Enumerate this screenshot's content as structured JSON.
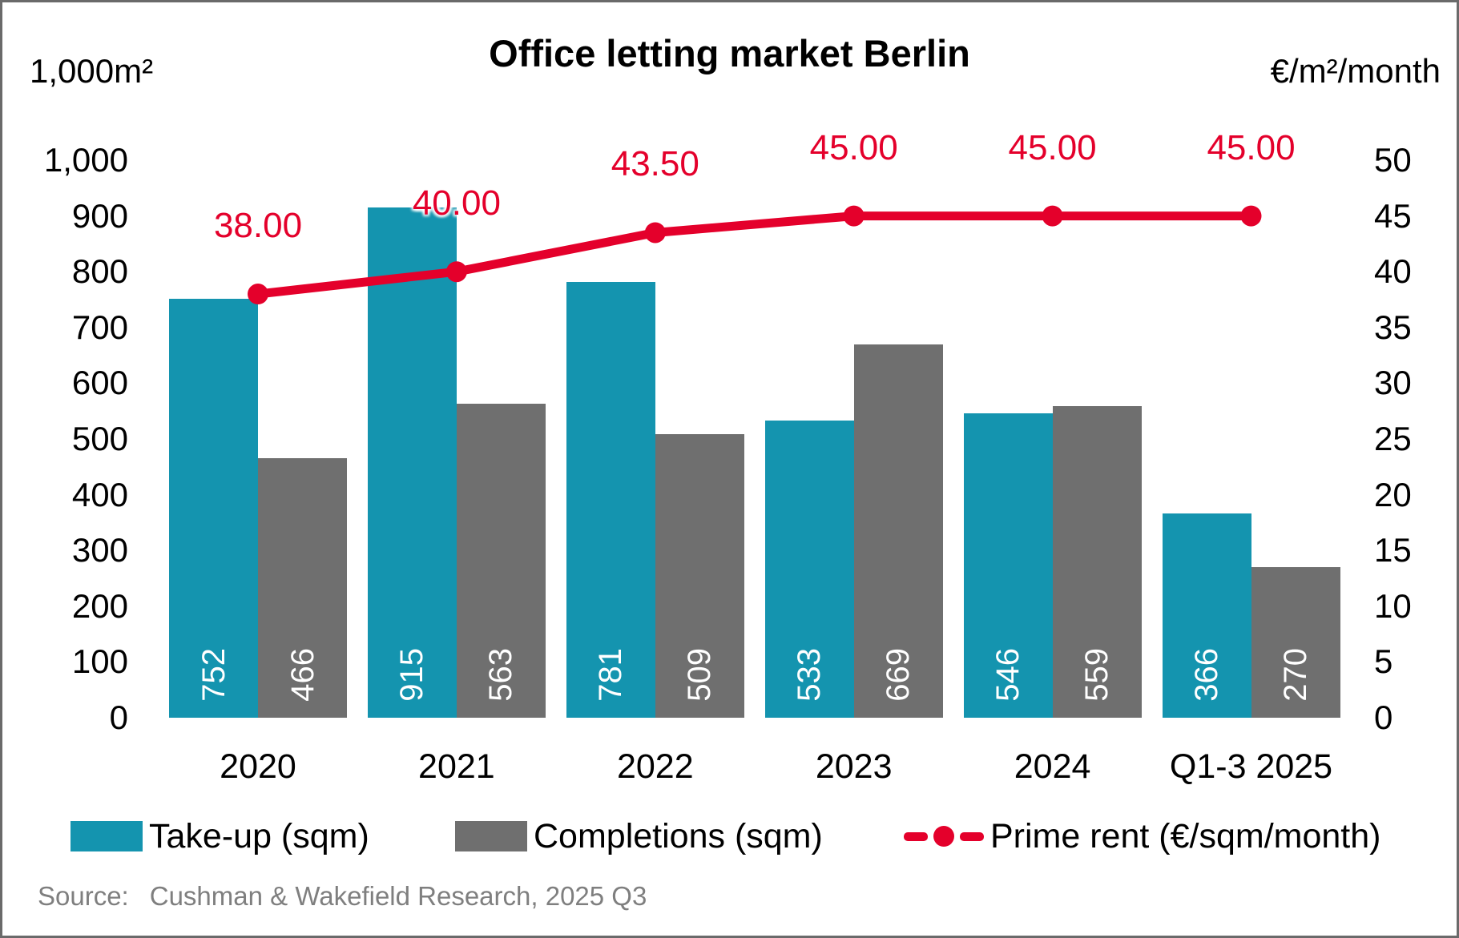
{
  "title": "Office letting market Berlin",
  "source": {
    "label": "Source:",
    "text": "Cushman & Wakefield Research, 2025 Q3"
  },
  "legend": [
    {
      "label": "Take-up (sqm)"
    },
    {
      "label": "Completions (sqm)"
    },
    {
      "label": "Prime rent (€/sqm/month)"
    }
  ],
  "colors": {
    "takeup_teal": "#1494af",
    "completions_gray": "#6f6f6f",
    "prime_rent_red": "#e4002b",
    "source_gray": "#7f7f7f",
    "frame_gray": "#6a6a6a"
  },
  "chart_data": {
    "type": "bar+line combo",
    "title": "Office letting market Berlin",
    "categories": [
      "2020",
      "2021",
      "2022",
      "2023",
      "2024",
      "Q1-3 2025"
    ],
    "series": [
      {
        "name": "Take-up (sqm)",
        "type": "bar",
        "axis": "left",
        "color": "#1494af",
        "values": [
          752,
          915,
          781,
          533,
          546,
          366
        ],
        "labels": [
          "752",
          "915",
          "781",
          "533",
          "546",
          "366"
        ]
      },
      {
        "name": "Completions (sqm)",
        "type": "bar",
        "axis": "left",
        "color": "#6f6f6f",
        "values": [
          466,
          563,
          509,
          669,
          559,
          270
        ],
        "labels": [
          "466",
          "563",
          "509",
          "669",
          "559",
          "270"
        ]
      },
      {
        "name": "Prime rent (€/sqm/month)",
        "type": "line",
        "axis": "right",
        "color": "#e4002b",
        "values": [
          38.0,
          40.0,
          43.5,
          45.0,
          45.0,
          45.0
        ],
        "labels": [
          "38.00",
          "40.00",
          "43.50",
          "45.00",
          "45.00",
          "45.00"
        ]
      }
    ],
    "axis_left": {
      "label": "1,000m²",
      "min": 0,
      "max": 1000,
      "tick_step": 100,
      "ticks": [
        "1,000",
        "900",
        "800",
        "700",
        "600",
        "500",
        "400",
        "300",
        "200",
        "100",
        "0"
      ]
    },
    "axis_right": {
      "label": "€/m²/month",
      "min": 0,
      "max": 50,
      "tick_step": 5,
      "ticks": [
        "50",
        "45",
        "40",
        "35",
        "30",
        "25",
        "20",
        "15",
        "10",
        "5",
        "0"
      ]
    },
    "grid": false,
    "legend_position": "bottom"
  }
}
